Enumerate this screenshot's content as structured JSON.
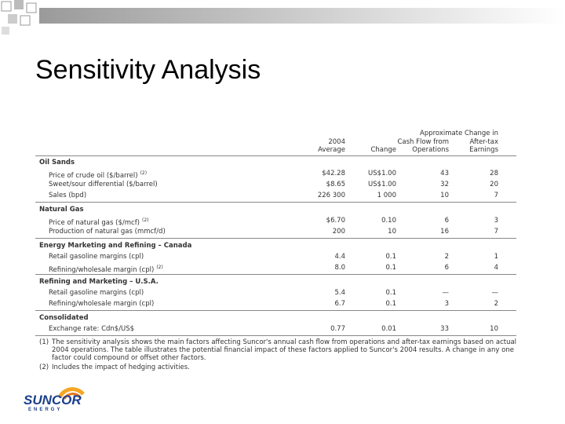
{
  "title": "Sensitivity Analysis",
  "table": {
    "group_header": "Approximate Change in",
    "columns": [
      [
        "2004",
        "Average"
      ],
      [
        "Change"
      ],
      [
        "Cash Flow from",
        "Operations"
      ],
      [
        "After-tax",
        "Earnings"
      ]
    ],
    "sections": [
      {
        "name": "Oil Sands",
        "rows": [
          {
            "label": "Price of crude oil ($/barrel)",
            "note": "(2)",
            "cells": [
              "$42.28",
              "US$1.00",
              "43",
              "28"
            ]
          },
          {
            "label": "Sweet/sour differential ($/barrel)",
            "cells": [
              "$8.65",
              "US$1.00",
              "32",
              "20"
            ]
          },
          {
            "label": "Sales (bpd)",
            "cells": [
              "226 300",
              "1 000",
              "10",
              "7"
            ]
          }
        ]
      },
      {
        "name": "Natural Gas",
        "rows": [
          {
            "label": "Price of natural gas ($/mcf)",
            "note": "(2)",
            "cells": [
              "$6.70",
              "0.10",
              "6",
              "3"
            ]
          },
          {
            "label": "Production of natural gas (mmcf/d)",
            "cells": [
              "200",
              "10",
              "16",
              "7"
            ]
          }
        ]
      },
      {
        "name": "Energy Marketing and Refining – Canada",
        "rows": [
          {
            "label": "Retail gasoline margins (cpl)",
            "cells": [
              "4.4",
              "0.1",
              "2",
              "1"
            ]
          },
          {
            "label": "Refining/wholesale margin (cpl)",
            "note": "(2)",
            "cells": [
              "8.0",
              "0.1",
              "6",
              "4"
            ]
          }
        ]
      },
      {
        "name": "Refining and Marketing – U.S.A.",
        "rows": [
          {
            "label": "Retail gasoline margins (cpl)",
            "cells": [
              "5.4",
              "0.1",
              "—",
              "—"
            ]
          },
          {
            "label": "Refining/wholesale margin (cpl)",
            "cells": [
              "6.7",
              "0.1",
              "3",
              "2"
            ]
          }
        ]
      },
      {
        "name": "Consolidated",
        "rows": [
          {
            "label": "Exchange rate: Cdn$/US$",
            "cells": [
              "0.77",
              "0.01",
              "33",
              "10"
            ]
          }
        ]
      }
    ],
    "footnotes": [
      {
        "marker": "(1)",
        "text": "The sensitivity analysis shows the main factors affecting Suncor's annual cash flow from operations and after-tax earnings based on actual 2004 operations. The table illustrates the potential financial impact of these factors applied to Suncor's 2004 results. A change in any one factor could compound or offset other factors."
      },
      {
        "marker": "(2)",
        "text": "Includes the impact of hedging activities."
      }
    ]
  },
  "logo": {
    "name": "SUNCOR",
    "tagline": "ENERGY"
  }
}
